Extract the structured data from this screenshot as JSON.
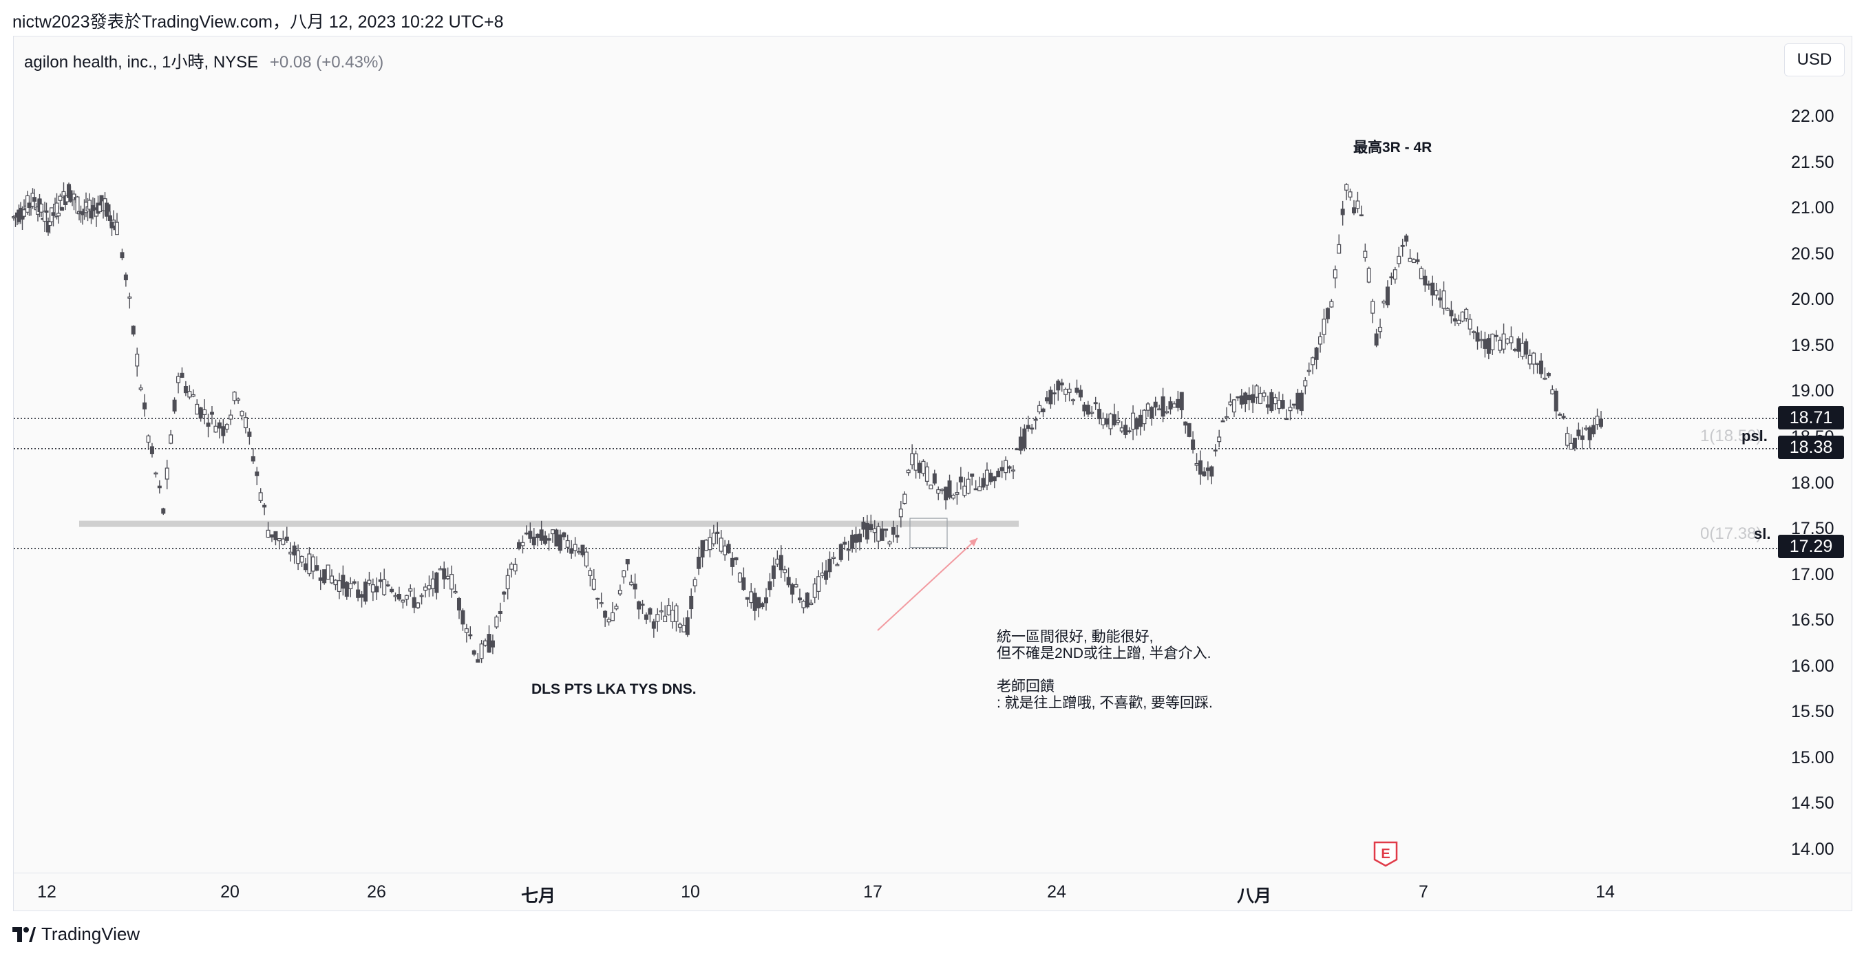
{
  "header": {
    "published_by": "nictw2023發表於TradingView.com，八月 12, 2023 10:22 UTC+8"
  },
  "symbol": {
    "name": "agilon health, inc., 1小時, NYSE",
    "change": "+0.08 (+0.43%)",
    "currency": "USD"
  },
  "annotations": {
    "high_target": "最高3R - 4R",
    "dls_note": "DLS PTS LKA TYS DNS.",
    "comment": "統一區間很好, 動能很好,\n但不確是2ND或往上蹭, 半倉介入.\n\n老師回饋\n: 就是往上蹭哦, 不喜歡, 要等回踩.",
    "fib_psl_value": "1(18.50)",
    "fib_psl_name": "psl.",
    "fib_sl_value": "0(17.38)",
    "fib_sl_name": "sl.",
    "earnings": "E"
  },
  "price_badges": {
    "last": "18.71",
    "entry": "18.38",
    "stop": "17.29"
  },
  "footer": {
    "brand": "TradingView"
  },
  "colors": {
    "candle": "#4d4d55",
    "support_band": "#cfcfcf",
    "arrow": "#f29aa0",
    "earnings": "#e03a48"
  },
  "chart_data": {
    "type": "candlestick",
    "interval": "1h",
    "y_axis": {
      "ticks": [
        "22.00",
        "21.50",
        "21.00",
        "20.50",
        "20.00",
        "19.50",
        "19.00",
        "18.50",
        "18.00",
        "17.50",
        "17.00",
        "16.50",
        "16.00",
        "15.50",
        "15.00",
        "14.50",
        "14.00"
      ],
      "range": [
        13.8,
        22.3
      ],
      "position": "right"
    },
    "x_axis": {
      "ticks": [
        {
          "label": "12",
          "bold": false
        },
        {
          "label": "20",
          "bold": false
        },
        {
          "label": "26",
          "bold": false
        },
        {
          "label": "七月",
          "bold": true
        },
        {
          "label": "10",
          "bold": false
        },
        {
          "label": "17",
          "bold": false
        },
        {
          "label": "24",
          "bold": false
        },
        {
          "label": "八月",
          "bold": true
        },
        {
          "label": "7",
          "bold": false
        },
        {
          "label": "14",
          "bold": false
        }
      ]
    },
    "horizontal_lines": [
      {
        "name": "last-price",
        "price": 18.71,
        "style": "dotted"
      },
      {
        "name": "entry",
        "price": 18.38,
        "style": "dotted"
      },
      {
        "name": "stop",
        "price": 17.29,
        "style": "dotted"
      },
      {
        "name": "support-band",
        "price": 17.56,
        "style": "band"
      }
    ],
    "price_path": [
      [
        0,
        20.9
      ],
      [
        6,
        21.1
      ],
      [
        10,
        20.85
      ],
      [
        16,
        21.2
      ],
      [
        20,
        20.95
      ],
      [
        26,
        21.05
      ],
      [
        30,
        20.8
      ],
      [
        34,
        18.5
      ],
      [
        36,
        17.7
      ],
      [
        38,
        19.2
      ],
      [
        41,
        18.8
      ],
      [
        44,
        18.6
      ],
      [
        46,
        19.0
      ],
      [
        48,
        18.3
      ],
      [
        50,
        17.5
      ],
      [
        54,
        17.2
      ],
      [
        58,
        17.0
      ],
      [
        62,
        16.8
      ],
      [
        66,
        16.9
      ],
      [
        70,
        16.7
      ],
      [
        74,
        17.05
      ],
      [
        78,
        16.1
      ],
      [
        80,
        16.3
      ],
      [
        82,
        16.9
      ],
      [
        84,
        17.4
      ],
      [
        88,
        17.4
      ],
      [
        92,
        17.3
      ],
      [
        94,
        16.7
      ],
      [
        96,
        16.5
      ],
      [
        98,
        17.1
      ],
      [
        100,
        16.6
      ],
      [
        102,
        16.5
      ],
      [
        104,
        16.6
      ],
      [
        106,
        16.45
      ],
      [
        108,
        17.3
      ],
      [
        110,
        17.4
      ],
      [
        112,
        17.2
      ],
      [
        114,
        16.8
      ],
      [
        116,
        16.6
      ],
      [
        118,
        17.2
      ],
      [
        120,
        16.9
      ],
      [
        122,
        16.7
      ],
      [
        126,
        17.2
      ],
      [
        128,
        17.4
      ],
      [
        130,
        17.5
      ],
      [
        134,
        17.4
      ],
      [
        136,
        18.3
      ],
      [
        138,
        18.1
      ],
      [
        140,
        17.9
      ],
      [
        144,
        18.0
      ],
      [
        148,
        18.1
      ],
      [
        150,
        18.3
      ],
      [
        152,
        18.7
      ],
      [
        156,
        19.1
      ],
      [
        160,
        18.8
      ],
      [
        164,
        18.6
      ],
      [
        168,
        18.8
      ],
      [
        172,
        18.9
      ],
      [
        174,
        18.2
      ],
      [
        176,
        18.1
      ],
      [
        178,
        18.8
      ],
      [
        182,
        19.0
      ],
      [
        186,
        18.8
      ],
      [
        188,
        18.9
      ],
      [
        190,
        19.4
      ],
      [
        192,
        20.0
      ],
      [
        194,
        21.2
      ],
      [
        196,
        20.9
      ],
      [
        198,
        19.6
      ],
      [
        200,
        20.2
      ],
      [
        202,
        20.6
      ],
      [
        204,
        20.3
      ],
      [
        206,
        20.1
      ],
      [
        208,
        19.9
      ],
      [
        210,
        19.8
      ],
      [
        212,
        19.5
      ],
      [
        216,
        19.6
      ],
      [
        220,
        19.3
      ],
      [
        222,
        18.9
      ],
      [
        224,
        18.4
      ],
      [
        228,
        18.7
      ]
    ]
  }
}
